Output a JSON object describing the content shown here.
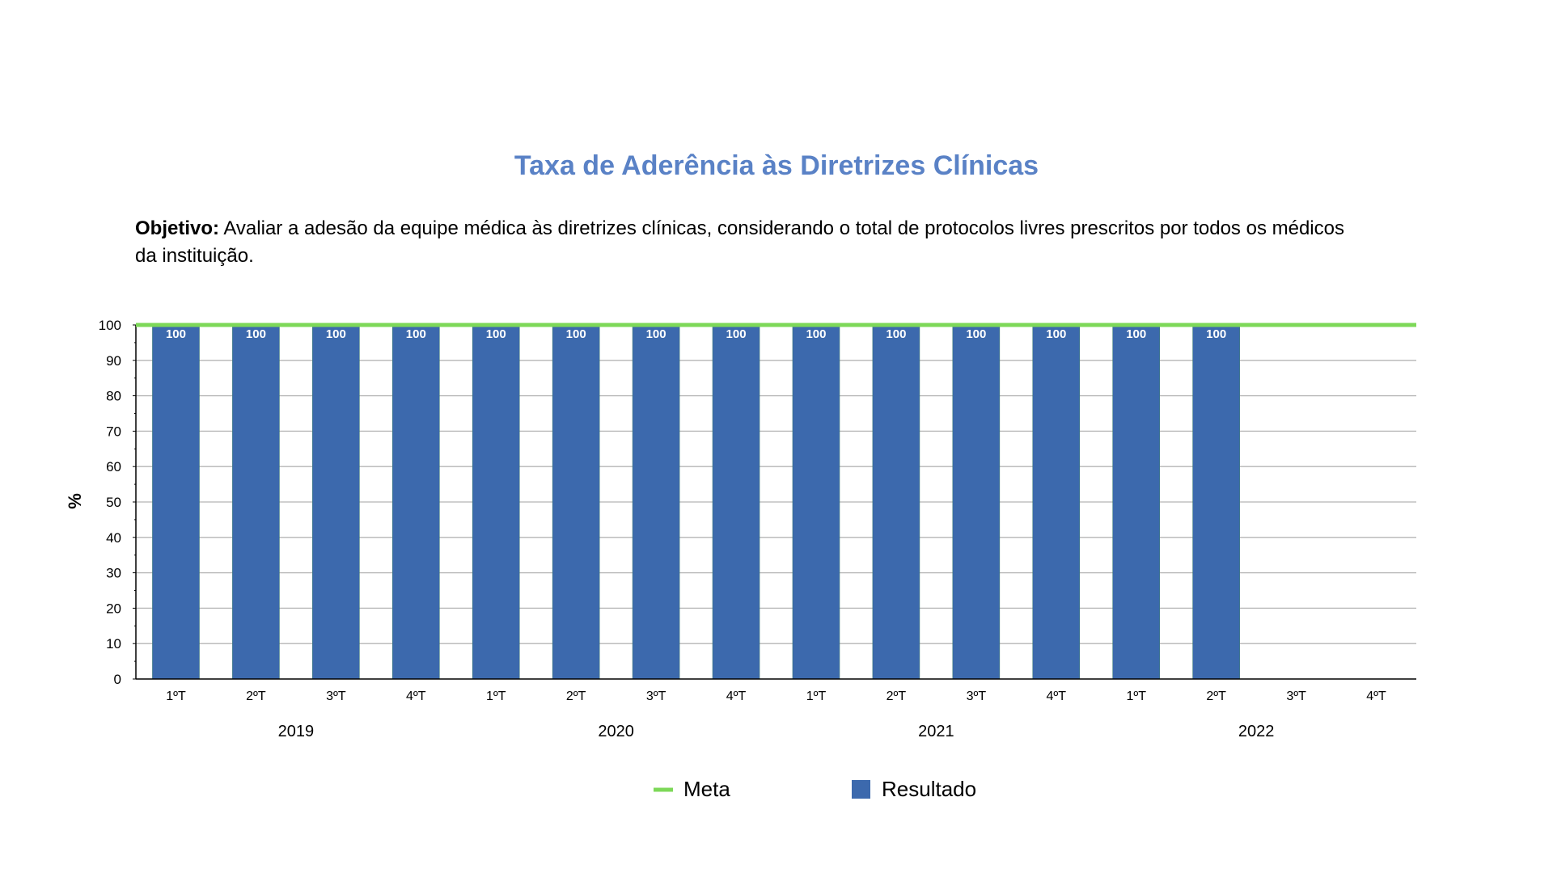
{
  "title": "Taxa de Aderência às Diretrizes Clínicas",
  "objective": {
    "label": "Objetivo:",
    "text": " Avaliar a adesão da equipe médica às diretrizes clínicas, considerando o total de protocolos livres prescritos por todos os médicos da instituição."
  },
  "colors": {
    "bar": "#3c69ad",
    "meta": "#7dd858",
    "title": "#5a82c6"
  },
  "chart_data": {
    "type": "bar",
    "title": "Taxa de Aderência às Diretrizes Clínicas",
    "ylabel": "%",
    "xlabel": "",
    "ylim": [
      0,
      100
    ],
    "yticks": [
      0,
      10,
      20,
      30,
      40,
      50,
      60,
      70,
      80,
      90,
      100
    ],
    "grid": true,
    "categories": [
      "1ºT",
      "2ºT",
      "3ºT",
      "4ºT",
      "1ºT",
      "2ºT",
      "3ºT",
      "4ºT",
      "1ºT",
      "2ºT",
      "3ºT",
      "4ºT",
      "1ºT",
      "2ºT",
      "3ºT",
      "4ºT"
    ],
    "groups": [
      "2019",
      "2020",
      "2021",
      "2022"
    ],
    "series": [
      {
        "name": "Resultado",
        "type": "bar",
        "values": [
          100,
          100,
          100,
          100,
          100,
          100,
          100,
          100,
          100,
          100,
          100,
          100,
          100,
          100,
          null,
          null
        ]
      },
      {
        "name": "Meta",
        "type": "line",
        "values": [
          100,
          100,
          100,
          100,
          100,
          100,
          100,
          100,
          100,
          100,
          100,
          100,
          100,
          100,
          100,
          100
        ]
      }
    ],
    "legend": {
      "position": "bottom",
      "entries": [
        "Meta",
        "Resultado"
      ]
    }
  }
}
